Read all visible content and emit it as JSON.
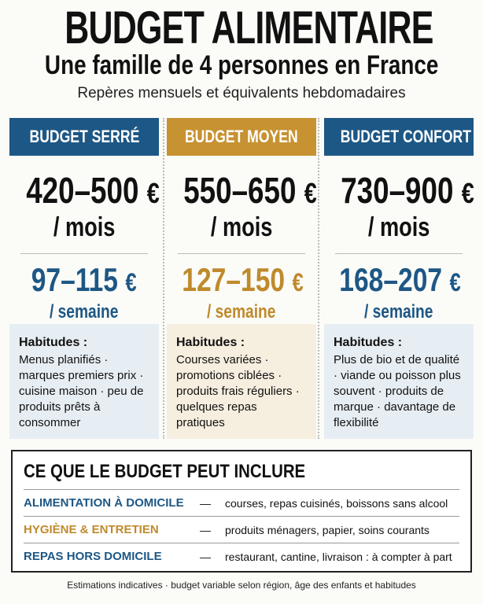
{
  "header": {
    "title": "BUDGET ALIMENTAIRE",
    "subtitle": "Une famille de 4 personnes en France",
    "caption": "Repères mensuels et équivalents hebdomadaires"
  },
  "budgets": [
    {
      "label": "BUDGET SERRÉ",
      "monthly": {
        "amount": "420–500",
        "currency": "€",
        "unit": "/ mois"
      },
      "weekly": {
        "amount": "97–115",
        "currency": "€",
        "unit": "/ semaine"
      },
      "habits_title": "Habitudes :",
      "habits": "Menus planifiés · marques premiers prix · cuisine maison · peu de produits prêts à consommer"
    },
    {
      "label": "BUDGET MOYEN",
      "monthly": {
        "amount": "550–650",
        "currency": "€",
        "unit": "/ mois"
      },
      "weekly": {
        "amount": "127–150",
        "currency": "€",
        "unit": "/ semaine"
      },
      "habits_title": "Habitudes :",
      "habits": "Courses variées · promotions ciblées · produits frais réguliers · quelques repas pratiques"
    },
    {
      "label": "BUDGET CONFORT",
      "monthly": {
        "amount": "730–900",
        "currency": "€",
        "unit": "/ mois"
      },
      "weekly": {
        "amount": "168–207",
        "currency": "€",
        "unit": "/ semaine"
      },
      "habits_title": "Habitudes :",
      "habits": "Plus de bio et de qualité · viande ou poisson plus souvent · produits de marque · davantage de flexibilité"
    }
  ],
  "includes": {
    "title": "CE QUE LE BUDGET PEUT INCLURE",
    "rows": [
      {
        "label": "ALIMENTATION À DOMICILE",
        "dash": "—",
        "text": "courses, repas cuisinés, boissons sans alcool"
      },
      {
        "label": "HYGIÈNE & ENTRETIEN",
        "dash": "—",
        "text": "produits ménagers, papier, soins courants"
      },
      {
        "label": "REPAS HORS DOMICILE",
        "dash": "—",
        "text": "restaurant, cantine, livraison : à compter à part"
      }
    ]
  },
  "footer": "Estimations indicatives · budget variable selon région, âge des enfants et habitudes"
}
